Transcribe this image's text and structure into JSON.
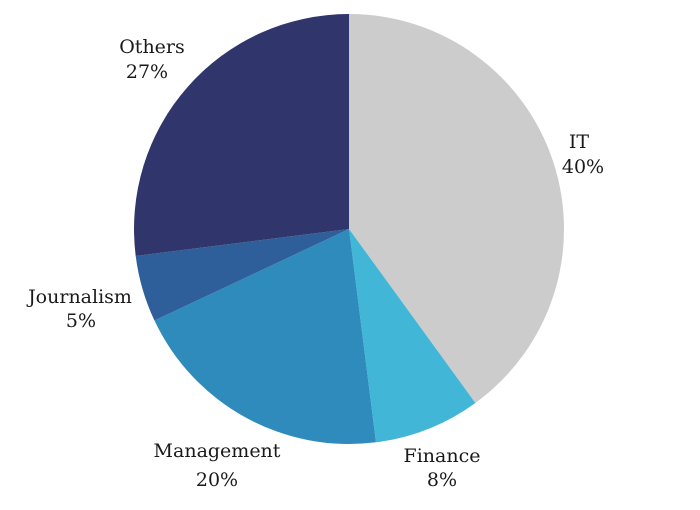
{
  "chart_data": {
    "type": "pie",
    "title": "",
    "start_angle_deg": 0,
    "direction": "clockwise",
    "slices": [
      {
        "label": "IT",
        "value": 40,
        "value_label": "40%",
        "color": "#cccccc"
      },
      {
        "label": "Finance",
        "value": 8,
        "value_label": "8%",
        "color": "#41b6d6"
      },
      {
        "label": "Management",
        "value": 20,
        "value_label": "20%",
        "color": "#2e8bbb"
      },
      {
        "label": "Journalism",
        "value": 5,
        "value_label": "5%",
        "color": "#2f5f9a"
      },
      {
        "label": "Others",
        "value": 27,
        "value_label": "27%",
        "color": "#30356b"
      }
    ]
  }
}
